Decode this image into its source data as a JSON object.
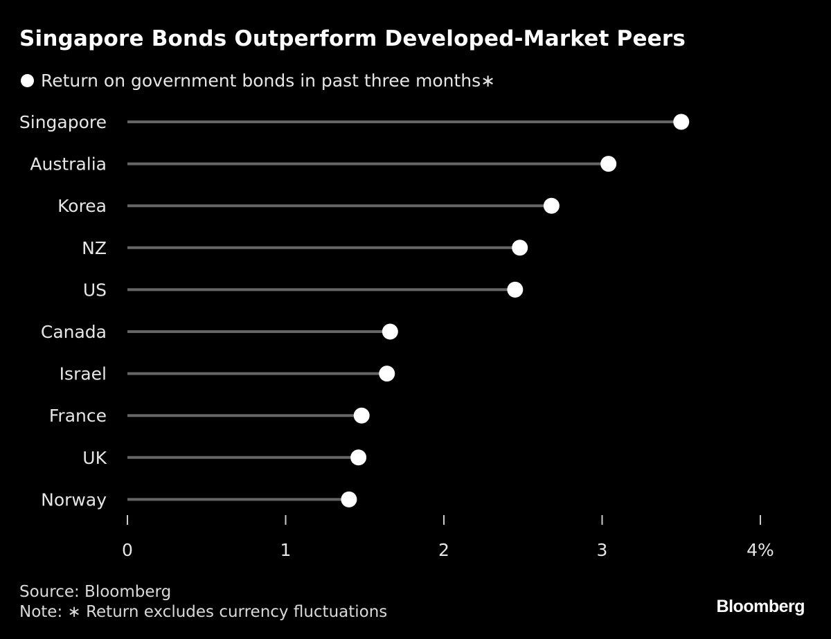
{
  "colors": {
    "background": "#000000",
    "text": "#ffffff",
    "stem": "#666666",
    "marker": "#ffffff"
  },
  "chart_data": {
    "type": "dot",
    "title": "Singapore Bonds Outperform Developed-Market Peers",
    "legend": "Return on government bonds in past three months∗",
    "legend_placement": "top-left",
    "categories": [
      "Singapore",
      "Australia",
      "Korea",
      "NZ",
      "US",
      "Canada",
      "Israel",
      "France",
      "UK",
      "Norway"
    ],
    "series": [
      {
        "name": "Return on government bonds in past three months∗",
        "values": [
          3.5,
          3.04,
          2.68,
          2.48,
          2.45,
          1.66,
          1.64,
          1.48,
          1.46,
          1.4
        ]
      }
    ],
    "xlim": [
      0,
      4
    ],
    "xticks": [
      0,
      1,
      2,
      3,
      4
    ],
    "xtick_labels": [
      "0",
      "1",
      "2",
      "3",
      "4%"
    ],
    "xlabel": "",
    "ylabel": "",
    "grid": false
  },
  "footer": {
    "source": "Source: Bloomberg",
    "note": "Note: ∗ Return excludes currency fluctuations",
    "brand": "Bloomberg"
  }
}
